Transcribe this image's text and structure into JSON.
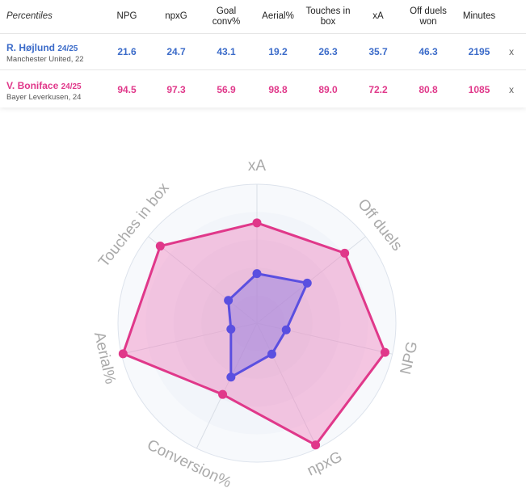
{
  "table": {
    "header_label": "Percentiles",
    "columns": [
      "NPG",
      "npxG",
      "Goal conv%",
      "Aerial%",
      "Touches in box",
      "xA",
      "Off duels won",
      "Minutes"
    ],
    "players": [
      {
        "name": "R. Højlund",
        "season": "24/25",
        "team": "Manchester United, 22",
        "color": "#3b6bc9",
        "values": [
          "21.6",
          "24.7",
          "43.1",
          "19.2",
          "26.3",
          "35.7",
          "46.3",
          "2195"
        ],
        "remove_label": "x"
      },
      {
        "name": "V. Boniface",
        "season": "24/25",
        "team": "Bayer Leverkusen, 24",
        "color": "#e0388a",
        "values": [
          "94.5",
          "97.3",
          "56.9",
          "98.8",
          "89.0",
          "72.2",
          "80.8",
          "1085"
        ],
        "remove_label": "x"
      }
    ]
  },
  "chart_data": {
    "type": "radar",
    "axes": [
      "xA",
      "Off duels",
      "NPG",
      "npxG",
      "Conversion%",
      "Aerial%",
      "Touches in box"
    ],
    "range": [
      0,
      100
    ],
    "rings": 5,
    "legend": "none",
    "series": [
      {
        "name": "R. Højlund",
        "color": "#5a4fe0",
        "fill": "rgba(125,110,230,0.38)",
        "values": [
          35.7,
          46.3,
          21.6,
          24.7,
          43.1,
          19.2,
          26.3
        ]
      },
      {
        "name": "V. Boniface",
        "color": "#e0388a",
        "fill": "rgba(240,120,185,0.40)",
        "values": [
          72.2,
          80.8,
          94.5,
          97.3,
          56.9,
          98.8,
          89.0
        ]
      }
    ]
  }
}
